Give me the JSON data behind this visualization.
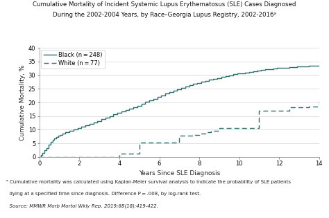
{
  "title_line1": "Cumulative Mortality of Incident Systemic Lupus Erythematosus (SLE) Cases Diagnosed",
  "title_line2": "During the 2002-2004 Years, by Race–Georgia Lupus Registry, 2002-2016ᵃ",
  "xlabel": "Years Since SLE Diagnosis",
  "ylabel": "Cumulative Mortality, %",
  "xlim": [
    0,
    14
  ],
  "ylim": [
    0,
    40
  ],
  "xticks": [
    0,
    2,
    4,
    6,
    8,
    10,
    12,
    14
  ],
  "yticks": [
    0,
    5,
    10,
    15,
    20,
    25,
    30,
    35,
    40
  ],
  "legend_black": "Black (n = 248)",
  "legend_white": "White (n = 77)",
  "line_color": "#2e6b6b",
  "footnote_a": "ᵃ Cumulative mortality was calculated using Kaplan-Meier survival analysis to indicate the probability of SLE patients",
  "footnote_b": "  dying at a specified time since diagnosis. Difference P = .008, by log-rank test.",
  "footnote_c": "  Source: MMWR Morb Mortol Wkly Rep. 2019;68(18):419-422.",
  "bg_color": "#ffffff",
  "black_x": [
    0,
    0.08,
    0.15,
    0.25,
    0.35,
    0.45,
    0.55,
    0.65,
    0.75,
    0.85,
    0.95,
    1.05,
    1.15,
    1.3,
    1.5,
    1.7,
    1.9,
    2.1,
    2.3,
    2.5,
    2.7,
    2.9,
    3.1,
    3.3,
    3.5,
    3.7,
    3.9,
    4.1,
    4.3,
    4.5,
    4.7,
    4.9,
    5.1,
    5.3,
    5.5,
    5.7,
    5.9,
    6.1,
    6.3,
    6.5,
    6.7,
    6.9,
    7.1,
    7.3,
    7.5,
    7.7,
    7.9,
    8.1,
    8.3,
    8.5,
    8.7,
    8.9,
    9.1,
    9.3,
    9.5,
    9.7,
    9.9,
    10.1,
    10.3,
    10.5,
    10.7,
    10.9,
    11.1,
    11.3,
    11.5,
    11.7,
    11.9,
    12.1,
    12.3,
    12.5,
    12.7,
    12.9,
    13.1,
    13.3,
    13.5,
    13.7,
    13.9,
    14.0
  ],
  "black_y": [
    0,
    0.8,
    1.6,
    2.4,
    3.2,
    4.5,
    5.5,
    6.2,
    6.8,
    7.3,
    7.8,
    8.2,
    8.7,
    9.2,
    9.7,
    10.2,
    10.7,
    11.2,
    11.7,
    12.2,
    12.7,
    13.2,
    13.8,
    14.4,
    15.0,
    15.6,
    16.2,
    16.8,
    17.3,
    17.8,
    18.3,
    18.8,
    19.5,
    20.2,
    20.8,
    21.4,
    22.0,
    22.6,
    23.2,
    23.8,
    24.3,
    24.8,
    25.3,
    25.8,
    26.3,
    26.8,
    27.2,
    27.6,
    28.0,
    28.4,
    28.7,
    29.0,
    29.4,
    29.7,
    30.0,
    30.3,
    30.6,
    30.8,
    31.0,
    31.2,
    31.5,
    31.7,
    31.9,
    32.1,
    32.3,
    32.5,
    32.6,
    32.7,
    32.8,
    32.9,
    33.0,
    33.1,
    33.2,
    33.3,
    33.4,
    33.5,
    33.5,
    33.5
  ],
  "white_x": [
    0,
    1.0,
    2.0,
    3.0,
    3.9,
    4.0,
    4.2,
    4.5,
    4.8,
    5.0,
    5.5,
    6.0,
    6.5,
    7.0,
    7.5,
    7.8,
    8.0,
    8.3,
    8.6,
    9.0,
    9.5,
    10.0,
    10.5,
    10.9,
    11.0,
    11.5,
    12.0,
    12.5,
    13.0,
    13.5,
    13.8,
    14.0
  ],
  "white_y": [
    0,
    0,
    0,
    0,
    0,
    1.3,
    1.3,
    1.3,
    1.3,
    5.2,
    5.2,
    5.2,
    5.2,
    7.8,
    7.8,
    8.0,
    8.5,
    9.0,
    9.5,
    10.5,
    10.5,
    10.5,
    10.5,
    10.5,
    16.9,
    16.9,
    16.9,
    18.2,
    18.2,
    18.5,
    18.5,
    21.0
  ]
}
